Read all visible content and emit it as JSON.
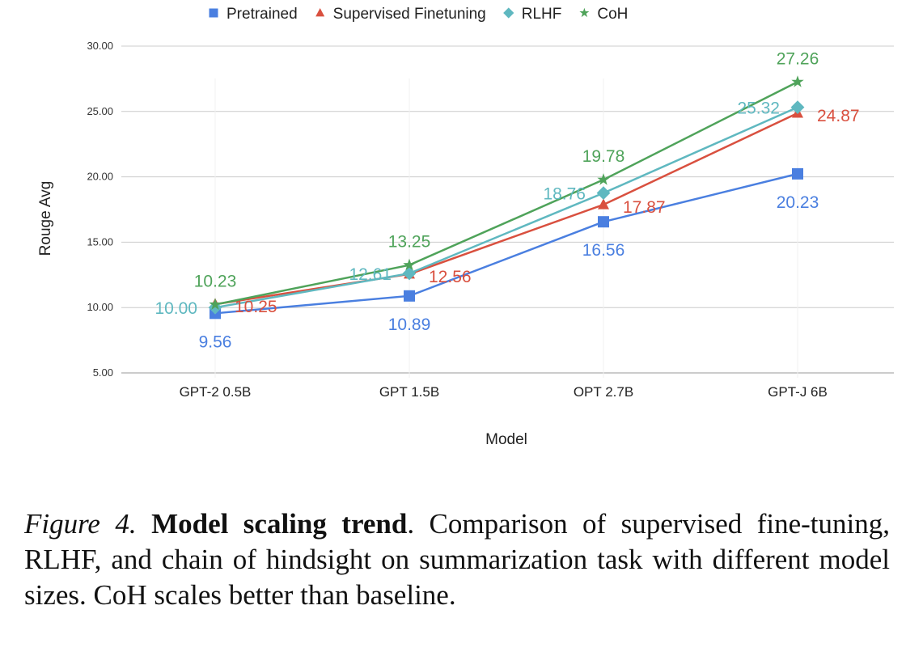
{
  "chart_data": {
    "type": "line",
    "xlabel": "Model",
    "ylabel": "Rouge Avg",
    "ylim": [
      5,
      30
    ],
    "yticks": [
      "5.00",
      "10.00",
      "15.00",
      "20.00",
      "25.00",
      "30.00"
    ],
    "categories": [
      "GPT-2 0.5B",
      "GPT 1.5B",
      "OPT 2.7B",
      "GPT-J 6B"
    ],
    "legend_position": "top",
    "grid": true,
    "series": [
      {
        "name": "Pretrained",
        "color": "#4a7fe0",
        "marker": "square",
        "values": [
          9.56,
          10.89,
          16.56,
          20.23
        ],
        "labels": [
          "9.56",
          "10.89",
          "16.56",
          "20.23"
        ]
      },
      {
        "name": "Supervised Finetuning",
        "color": "#d9503f",
        "marker": "triangle",
        "values": [
          10.25,
          12.56,
          17.87,
          24.87
        ],
        "labels": [
          "10.25",
          "12.56",
          "17.87",
          "24.87"
        ]
      },
      {
        "name": "RLHF",
        "color": "#5fb8c0",
        "marker": "diamond",
        "values": [
          10.0,
          12.61,
          18.76,
          25.32
        ],
        "labels": [
          "10.00",
          "12.61",
          "18.76",
          "25.32"
        ]
      },
      {
        "name": "CoH",
        "color": "#4fa35a",
        "marker": "star",
        "values": [
          10.23,
          13.25,
          19.78,
          27.26
        ],
        "labels": [
          "10.23",
          "13.25",
          "19.78",
          "27.26"
        ]
      }
    ]
  },
  "caption": {
    "figure_label": "Figure 4.",
    "title": "Model scaling trend",
    "text": ".  Comparison of supervised fine-tuning, RLHF, and chain of hindsight on summarization task with different model sizes. CoH scales better than baseline."
  }
}
